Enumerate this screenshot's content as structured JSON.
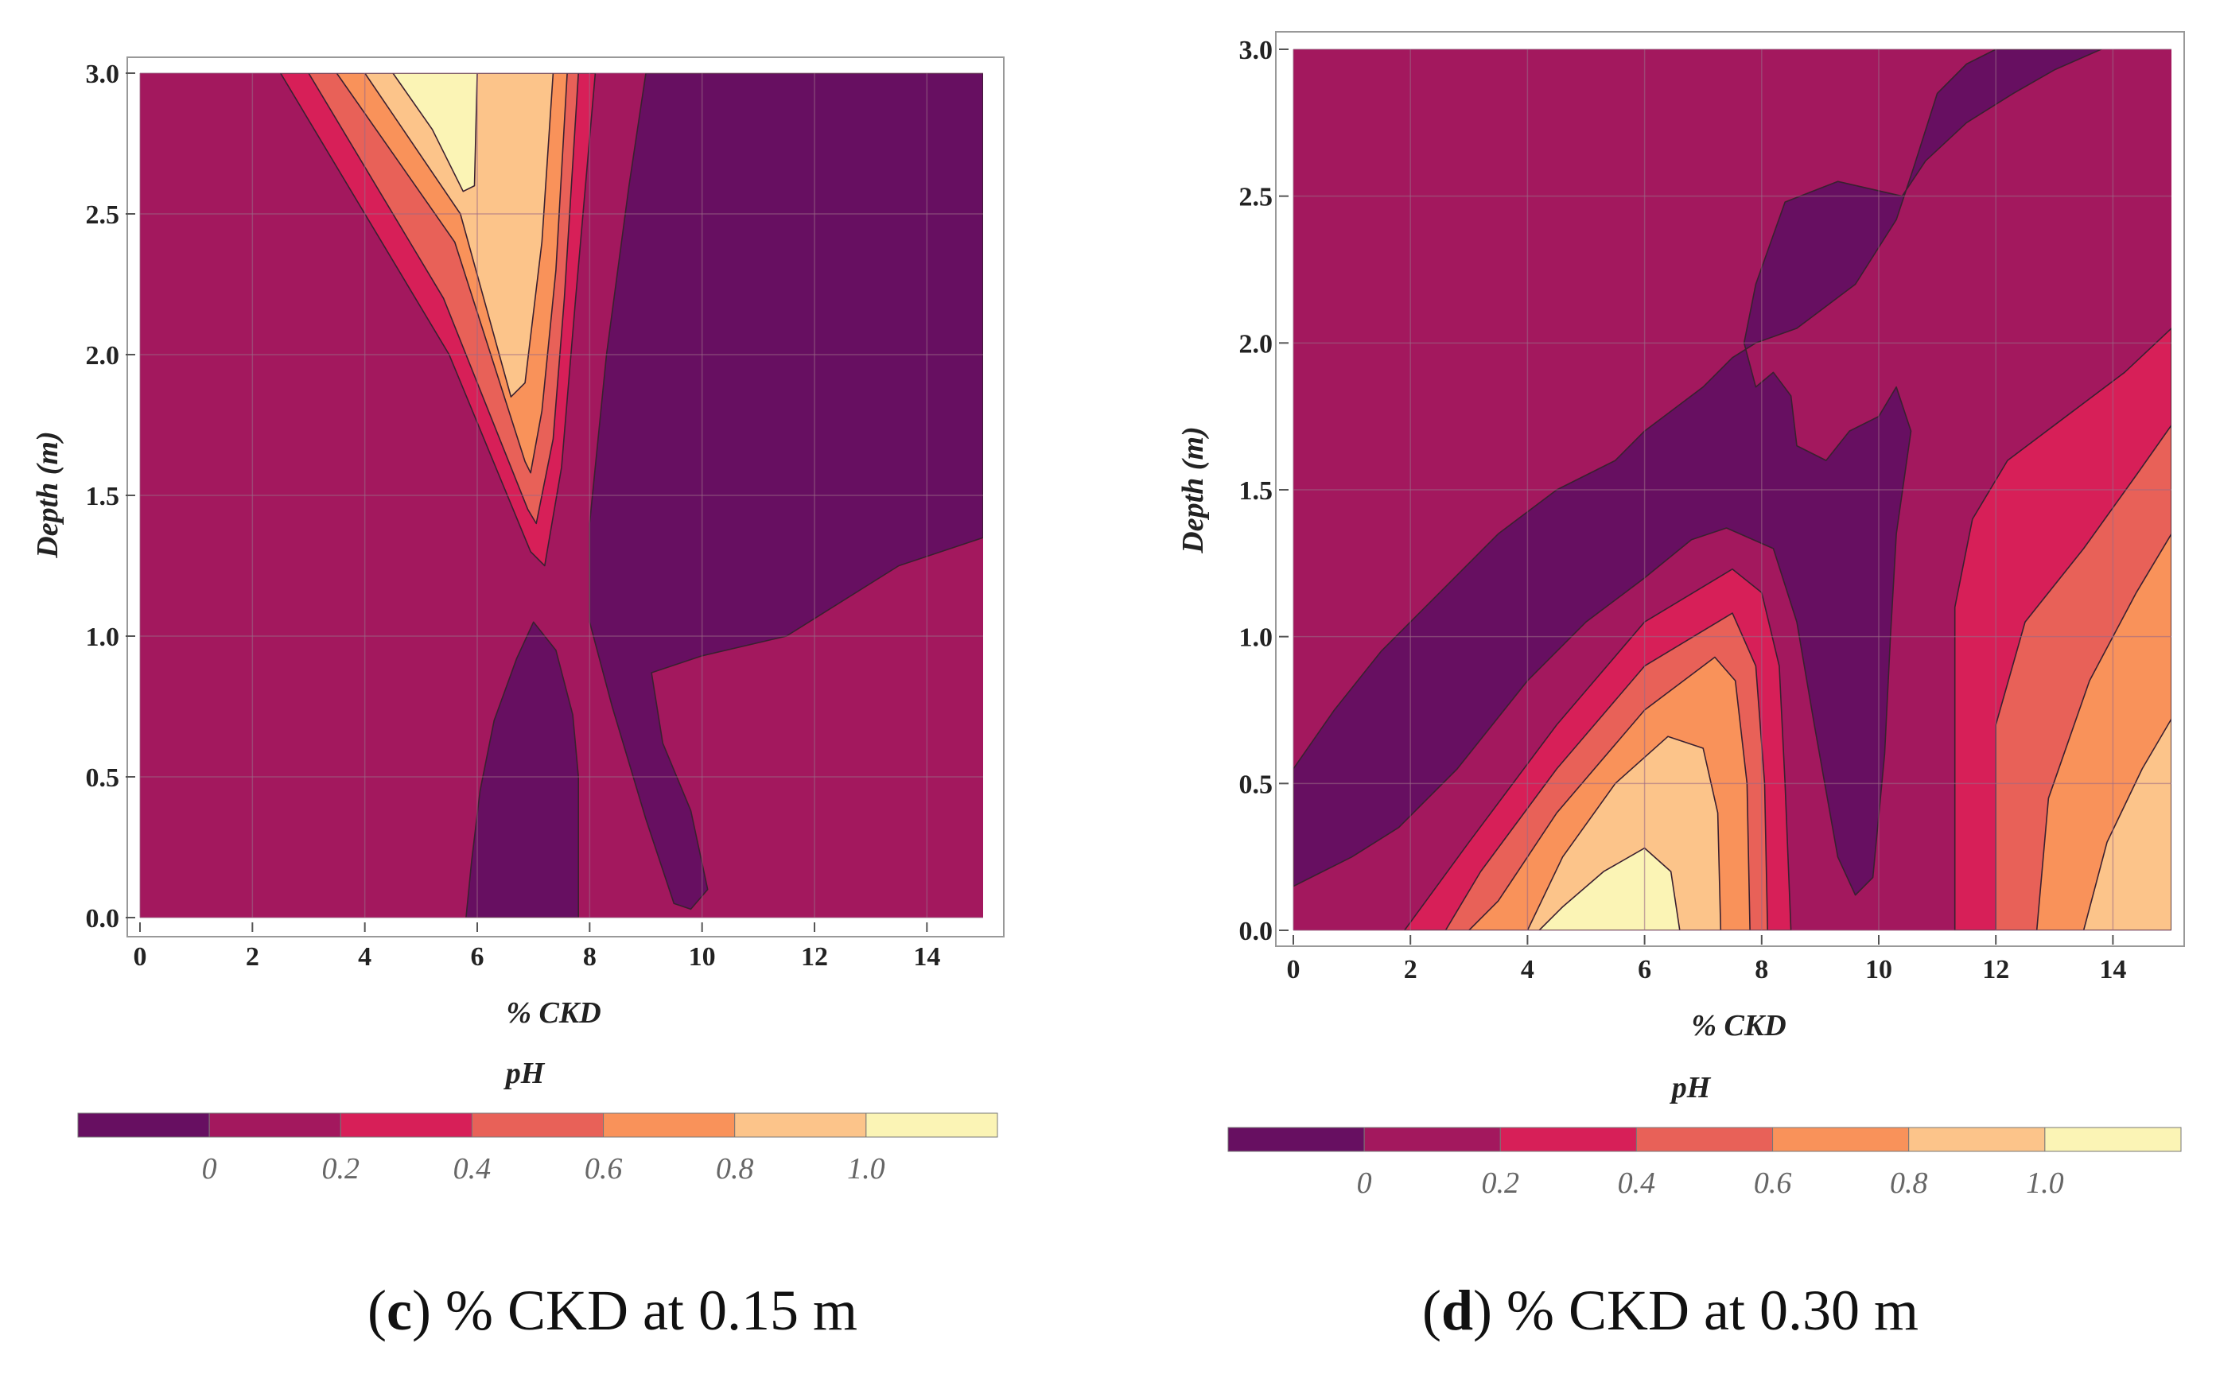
{
  "colors": {
    "band_lt0": "#670f61",
    "band_0_02": "#a3185e",
    "band_02_04": "#d71f58",
    "band_04_06": "#e86158",
    "band_06_08": "#f9925a",
    "band_08_10": "#fcc48a",
    "band_gt10": "#fbf4b5"
  },
  "chart_data": [
    {
      "type": "contour",
      "panel": "c",
      "caption_letter": "c",
      "caption_text": "% CKD at 0.15 m",
      "xlabel": "% CKD",
      "ylabel": "Depth (m)",
      "xlim": [
        0,
        15
      ],
      "ylim": [
        0,
        3
      ],
      "xticks": [
        "0",
        "2",
        "4",
        "6",
        "8",
        "10",
        "12",
        "14"
      ],
      "yticks": [
        "0.0",
        "0.5",
        "1.0",
        "1.5",
        "2.0",
        "2.5",
        "3.0"
      ],
      "colorbar_title": "pH",
      "colorbar_ticks": [
        "0",
        "0.2",
        "0.4",
        "0.6",
        "0.8",
        "1.0"
      ],
      "levels": [
        0,
        0.2,
        0.4,
        0.6,
        0.8,
        1.0
      ],
      "regions": [
        {
          "band": "band_0_02",
          "points": [
            [
              0,
              0
            ],
            [
              15,
              0
            ],
            [
              15,
              3
            ],
            [
              0,
              3
            ]
          ]
        },
        {
          "band": "band_lt0",
          "points": [
            [
              9.0,
              3
            ],
            [
              15,
              3
            ],
            [
              15,
              1.35
            ],
            [
              13.5,
              1.25
            ],
            [
              11.5,
              1.0
            ],
            [
              10.0,
              0.93
            ],
            [
              9.1,
              0.87
            ],
            [
              9.3,
              0.62
            ],
            [
              9.8,
              0.38
            ],
            [
              10.1,
              0.1
            ],
            [
              9.8,
              0.03
            ],
            [
              9.5,
              0.05
            ],
            [
              9.0,
              0.35
            ],
            [
              8.4,
              0.75
            ],
            [
              8.0,
              1.05
            ],
            [
              8.0,
              1.4
            ],
            [
              8.3,
              2.0
            ],
            [
              8.7,
              2.6
            ]
          ]
        },
        {
          "band": "band_lt0",
          "points": [
            [
              5.8,
              0
            ],
            [
              7.8,
              0
            ],
            [
              7.8,
              0.5
            ],
            [
              7.7,
              0.72
            ],
            [
              7.4,
              0.95
            ],
            [
              7.0,
              1.05
            ],
            [
              6.7,
              0.92
            ],
            [
              6.3,
              0.7
            ],
            [
              6.05,
              0.45
            ],
            [
              5.9,
              0.2
            ]
          ]
        },
        {
          "band": "band_02_04",
          "points": [
            [
              2.5,
              3
            ],
            [
              8.1,
              3
            ],
            [
              7.75,
              2.2
            ],
            [
              7.5,
              1.6
            ],
            [
              7.2,
              1.25
            ],
            [
              6.95,
              1.3
            ],
            [
              5.5,
              2.0
            ]
          ]
        },
        {
          "band": "band_04_06",
          "points": [
            [
              3.0,
              3
            ],
            [
              7.8,
              3
            ],
            [
              7.55,
              2.2
            ],
            [
              7.35,
              1.7
            ],
            [
              7.05,
              1.4
            ],
            [
              6.9,
              1.45
            ],
            [
              5.4,
              2.2
            ]
          ]
        },
        {
          "band": "band_06_08",
          "points": [
            [
              3.5,
              3
            ],
            [
              7.6,
              3
            ],
            [
              7.4,
              2.3
            ],
            [
              7.15,
              1.8
            ],
            [
              6.95,
              1.58
            ],
            [
              6.85,
              1.62
            ],
            [
              5.6,
              2.4
            ]
          ]
        },
        {
          "band": "band_08_10",
          "points": [
            [
              4.0,
              3
            ],
            [
              7.35,
              3
            ],
            [
              7.15,
              2.4
            ],
            [
              6.85,
              1.9
            ],
            [
              6.6,
              1.85
            ],
            [
              5.7,
              2.5
            ]
          ]
        },
        {
          "band": "band_gt10",
          "points": [
            [
              4.5,
              3
            ],
            [
              6.0,
              3
            ],
            [
              5.95,
              2.6
            ],
            [
              5.75,
              2.58
            ],
            [
              5.2,
              2.8
            ]
          ]
        }
      ]
    },
    {
      "type": "contour",
      "panel": "d",
      "caption_letter": "d",
      "caption_text": "% CKD at 0.30 m",
      "xlabel": "% CKD",
      "ylabel": "Depth (m)",
      "xlim": [
        0,
        15
      ],
      "ylim": [
        0,
        3
      ],
      "xticks": [
        "0",
        "2",
        "4",
        "6",
        "8",
        "10",
        "12",
        "14"
      ],
      "yticks": [
        "0.0",
        "0.5",
        "1.0",
        "1.5",
        "2.0",
        "2.5",
        "3.0"
      ],
      "colorbar_title": "pH",
      "colorbar_ticks": [
        "0",
        "0.2",
        "0.4",
        "0.6",
        "0.8",
        "1.0"
      ],
      "levels": [
        0,
        0.2,
        0.4,
        0.6,
        0.8,
        1.0
      ],
      "regions": [
        {
          "band": "band_0_02",
          "points": [
            [
              0,
              0
            ],
            [
              15,
              0
            ],
            [
              15,
              3
            ],
            [
              0,
              3
            ]
          ]
        },
        {
          "band": "band_lt0",
          "points": [
            [
              0,
              0.15
            ],
            [
              1.0,
              0.25
            ],
            [
              1.8,
              0.35
            ],
            [
              2.8,
              0.55
            ],
            [
              4.0,
              0.85
            ],
            [
              5.0,
              1.05
            ],
            [
              6.0,
              1.2
            ],
            [
              6.8,
              1.33
            ],
            [
              7.4,
              1.37
            ],
            [
              8.2,
              1.3
            ],
            [
              8.6,
              1.05
            ],
            [
              8.9,
              0.7
            ],
            [
              9.3,
              0.25
            ],
            [
              9.6,
              0.12
            ],
            [
              9.9,
              0.18
            ],
            [
              10.1,
              0.6
            ],
            [
              10.2,
              1.0
            ],
            [
              10.3,
              1.35
            ],
            [
              10.55,
              1.7
            ],
            [
              10.3,
              1.85
            ],
            [
              10.0,
              1.75
            ],
            [
              9.5,
              1.7
            ],
            [
              9.1,
              1.6
            ],
            [
              8.6,
              1.65
            ],
            [
              8.5,
              1.82
            ],
            [
              8.2,
              1.9
            ],
            [
              7.9,
              1.85
            ],
            [
              7.7,
              2.0
            ],
            [
              7.9,
              2.2
            ],
            [
              8.4,
              2.48
            ],
            [
              9.3,
              2.55
            ],
            [
              10.4,
              2.5
            ],
            [
              10.8,
              2.62
            ],
            [
              11.5,
              2.75
            ],
            [
              12.3,
              2.85
            ],
            [
              13.0,
              2.93
            ],
            [
              13.8,
              3
            ],
            [
              12.0,
              3
            ],
            [
              11.5,
              2.95
            ],
            [
              11.0,
              2.85
            ],
            [
              10.6,
              2.6
            ],
            [
              10.3,
              2.42
            ],
            [
              9.6,
              2.2
            ],
            [
              8.6,
              2.05
            ],
            [
              7.9,
              2.0
            ],
            [
              7.5,
              1.95
            ],
            [
              7.0,
              1.85
            ],
            [
              6.0,
              1.7
            ],
            [
              5.5,
              1.6
            ],
            [
              4.5,
              1.5
            ],
            [
              3.5,
              1.35
            ],
            [
              2.5,
              1.15
            ],
            [
              1.5,
              0.95
            ],
            [
              0.7,
              0.75
            ],
            [
              0,
              0.55
            ]
          ]
        },
        {
          "band": "band_02_04",
          "points": [
            [
              1.9,
              0
            ],
            [
              8.5,
              0
            ],
            [
              8.4,
              0.5
            ],
            [
              8.3,
              0.9
            ],
            [
              8.0,
              1.15
            ],
            [
              7.5,
              1.23
            ],
            [
              6.0,
              1.05
            ],
            [
              4.5,
              0.7
            ],
            [
              3.0,
              0.3
            ]
          ]
        },
        {
          "band": "band_04_06",
          "points": [
            [
              2.6,
              0
            ],
            [
              8.1,
              0
            ],
            [
              8.05,
              0.5
            ],
            [
              7.9,
              0.9
            ],
            [
              7.5,
              1.08
            ],
            [
              6.0,
              0.9
            ],
            [
              4.5,
              0.55
            ],
            [
              3.2,
              0.2
            ]
          ]
        },
        {
          "band": "band_06_08",
          "points": [
            [
              3.0,
              0
            ],
            [
              7.8,
              0
            ],
            [
              7.75,
              0.5
            ],
            [
              7.55,
              0.85
            ],
            [
              7.2,
              0.93
            ],
            [
              6.0,
              0.75
            ],
            [
              4.5,
              0.4
            ],
            [
              3.5,
              0.1
            ]
          ]
        },
        {
          "band": "band_08_10",
          "points": [
            [
              4.0,
              0
            ],
            [
              7.3,
              0
            ],
            [
              7.25,
              0.4
            ],
            [
              7.0,
              0.62
            ],
            [
              6.4,
              0.66
            ],
            [
              5.5,
              0.5
            ],
            [
              4.6,
              0.25
            ]
          ]
        },
        {
          "band": "band_gt10",
          "points": [
            [
              4.2,
              0
            ],
            [
              6.6,
              0
            ],
            [
              6.45,
              0.2
            ],
            [
              6.0,
              0.28
            ],
            [
              5.3,
              0.2
            ],
            [
              4.6,
              0.08
            ]
          ]
        },
        {
          "band": "band_02_04",
          "points": [
            [
              11.3,
              0
            ],
            [
              15,
              0
            ],
            [
              15,
              2.05
            ],
            [
              14.2,
              1.9
            ],
            [
              13.2,
              1.75
            ],
            [
              12.2,
              1.6
            ],
            [
              11.6,
              1.4
            ],
            [
              11.3,
              1.1
            ],
            [
              11.3,
              0.5
            ]
          ]
        },
        {
          "band": "band_04_06",
          "points": [
            [
              12.0,
              0
            ],
            [
              15,
              0
            ],
            [
              15,
              1.72
            ],
            [
              14.4,
              1.55
            ],
            [
              13.5,
              1.3
            ],
            [
              12.5,
              1.05
            ],
            [
              12.0,
              0.7
            ]
          ]
        },
        {
          "band": "band_06_08",
          "points": [
            [
              12.7,
              0
            ],
            [
              15,
              0
            ],
            [
              15,
              1.35
            ],
            [
              14.4,
              1.15
            ],
            [
              13.6,
              0.85
            ],
            [
              12.9,
              0.45
            ]
          ]
        },
        {
          "band": "band_08_10",
          "points": [
            [
              13.5,
              0
            ],
            [
              15,
              0
            ],
            [
              15,
              0.72
            ],
            [
              14.5,
              0.55
            ],
            [
              13.9,
              0.3
            ]
          ]
        }
      ]
    }
  ]
}
